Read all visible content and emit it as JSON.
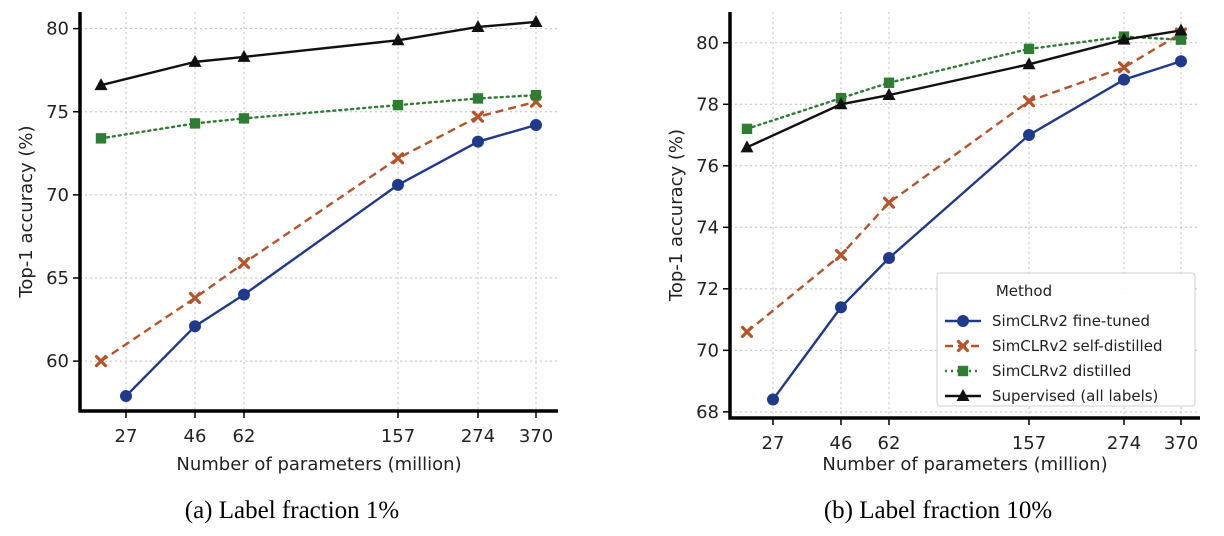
{
  "chart_data": [
    {
      "type": "line",
      "caption": "(a) Label fraction 1%",
      "xlabel": "Number of parameters (million)",
      "ylabel": "Top-1 accuracy (%)",
      "x": [
        27,
        46,
        62,
        157,
        274,
        370
      ],
      "xticks": [
        "27",
        "46",
        "62",
        "157",
        "274",
        "370"
      ],
      "ylim": [
        57,
        81
      ],
      "yticks": [
        "60",
        "65",
        "70",
        "75",
        "80"
      ],
      "ytick_values": [
        60,
        65,
        70,
        75,
        80
      ],
      "grid": true,
      "series": [
        {
          "name": "SimCLRv2 fine-tuned",
          "color": "#1f3a8a",
          "marker": "circle",
          "dash": "solid",
          "x": [
            27,
            46,
            62,
            157,
            274,
            370
          ],
          "values": [
            57.9,
            62.1,
            64.0,
            70.6,
            73.2,
            74.2
          ]
        },
        {
          "name": "SimCLRv2 self-distilled",
          "color": "#b5542a",
          "marker": "x",
          "dash": "dashed",
          "x": [
            24,
            46,
            62,
            157,
            274,
            370
          ],
          "values": [
            60.0,
            63.8,
            65.9,
            72.2,
            74.7,
            75.6
          ]
        },
        {
          "name": "SimCLRv2 distilled",
          "color": "#2e7d32",
          "marker": "square",
          "dash": "dotted",
          "x": [
            24,
            46,
            62,
            157,
            274,
            370
          ],
          "values": [
            73.4,
            74.3,
            74.6,
            75.4,
            75.8,
            76.0
          ]
        },
        {
          "name": "Supervised (all labels)",
          "color": "#111111",
          "marker": "triangle",
          "dash": "solid",
          "x": [
            24,
            46,
            62,
            157,
            274,
            370
          ],
          "values": [
            76.6,
            78.0,
            78.3,
            79.3,
            80.1,
            80.4
          ]
        }
      ]
    },
    {
      "type": "line",
      "caption": "(b) Label fraction 10%",
      "xlabel": "Number of parameters (million)",
      "ylabel": "Top-1 accuracy (%)",
      "x": [
        27,
        46,
        62,
        157,
        274,
        370
      ],
      "xticks": [
        "27",
        "46",
        "62",
        "157",
        "274",
        "370"
      ],
      "ylim": [
        67.8,
        81
      ],
      "yticks": [
        "68",
        "70",
        "72",
        "74",
        "76",
        "78",
        "80"
      ],
      "ytick_values": [
        68,
        70,
        72,
        74,
        76,
        78,
        80
      ],
      "grid": true,
      "legend": {
        "title": "Method",
        "placement": "lower-right"
      },
      "series": [
        {
          "name": "SimCLRv2 fine-tuned",
          "color": "#1f3a8a",
          "marker": "circle",
          "dash": "solid",
          "x": [
            27,
            46,
            62,
            157,
            274,
            370
          ],
          "values": [
            68.4,
            71.4,
            73.0,
            77.0,
            78.8,
            79.4
          ]
        },
        {
          "name": "SimCLRv2 self-distilled",
          "color": "#b5542a",
          "marker": "x",
          "dash": "dashed",
          "x": [
            24,
            46,
            62,
            157,
            274,
            370
          ],
          "values": [
            70.6,
            73.1,
            74.8,
            78.1,
            79.2,
            80.3
          ]
        },
        {
          "name": "SimCLRv2 distilled",
          "color": "#2e7d32",
          "marker": "square",
          "dash": "dotted",
          "x": [
            24,
            46,
            62,
            157,
            274,
            370
          ],
          "values": [
            77.2,
            78.2,
            78.7,
            79.8,
            80.2,
            80.1
          ]
        },
        {
          "name": "Supervised (all labels)",
          "color": "#111111",
          "marker": "triangle",
          "dash": "solid",
          "x": [
            24,
            46,
            62,
            157,
            274,
            370
          ],
          "values": [
            76.6,
            78.0,
            78.3,
            79.3,
            80.1,
            80.4
          ]
        }
      ]
    }
  ]
}
